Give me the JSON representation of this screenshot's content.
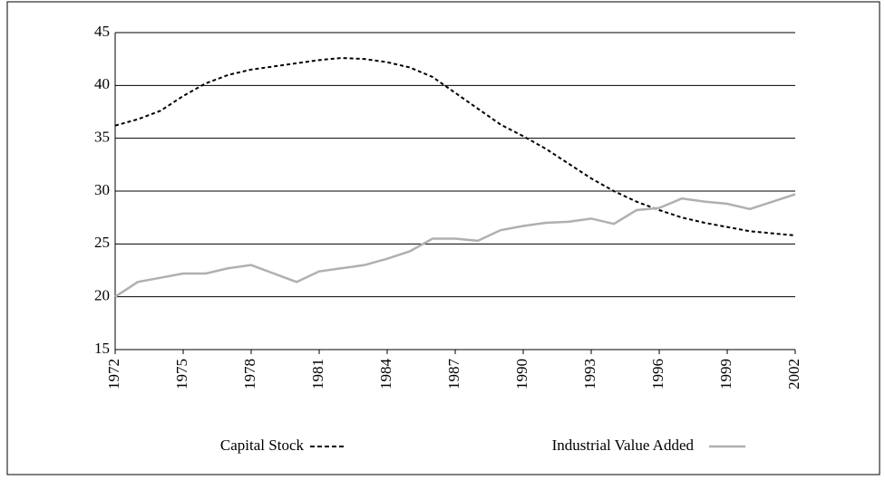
{
  "chart_data": {
    "type": "line",
    "x": [
      1972,
      1973,
      1974,
      1975,
      1976,
      1977,
      1978,
      1979,
      1980,
      1981,
      1982,
      1983,
      1984,
      1985,
      1986,
      1987,
      1988,
      1989,
      1990,
      1991,
      1992,
      1993,
      1994,
      1995,
      1996,
      1997,
      1998,
      1999,
      2000,
      2001,
      2002
    ],
    "series": [
      {
        "name": "Capital Stock",
        "color": "#000000",
        "dash": true,
        "values": [
          36.2,
          36.8,
          37.6,
          39.0,
          40.2,
          41.0,
          41.5,
          41.8,
          42.1,
          42.4,
          42.6,
          42.5,
          42.2,
          41.7,
          40.8,
          39.3,
          37.8,
          36.3,
          35.2,
          34.0,
          32.6,
          31.2,
          30.0,
          29.0,
          28.2,
          27.5,
          27.0,
          26.6,
          26.2,
          26.0,
          25.8
        ]
      },
      {
        "name": "Industrial Value Added",
        "color": "#b0b0b0",
        "dash": false,
        "values": [
          20.0,
          21.4,
          21.8,
          22.2,
          22.2,
          22.7,
          23.0,
          22.2,
          21.4,
          22.4,
          22.7,
          23.0,
          23.6,
          24.3,
          25.5,
          25.5,
          25.3,
          26.3,
          26.7,
          27.0,
          27.1,
          27.4,
          26.9,
          28.2,
          28.4,
          29.3,
          29.0,
          28.8,
          28.3,
          29.0,
          29.7
        ]
      }
    ],
    "xlim": [
      1972,
      2002
    ],
    "xticks": [
      1972,
      1975,
      1978,
      1981,
      1984,
      1987,
      1990,
      1993,
      1996,
      1999,
      2002
    ],
    "ylim": [
      15,
      45
    ],
    "yticks": [
      15,
      20,
      25,
      30,
      35,
      40,
      45
    ],
    "grid": true,
    "legend": "bottom"
  }
}
